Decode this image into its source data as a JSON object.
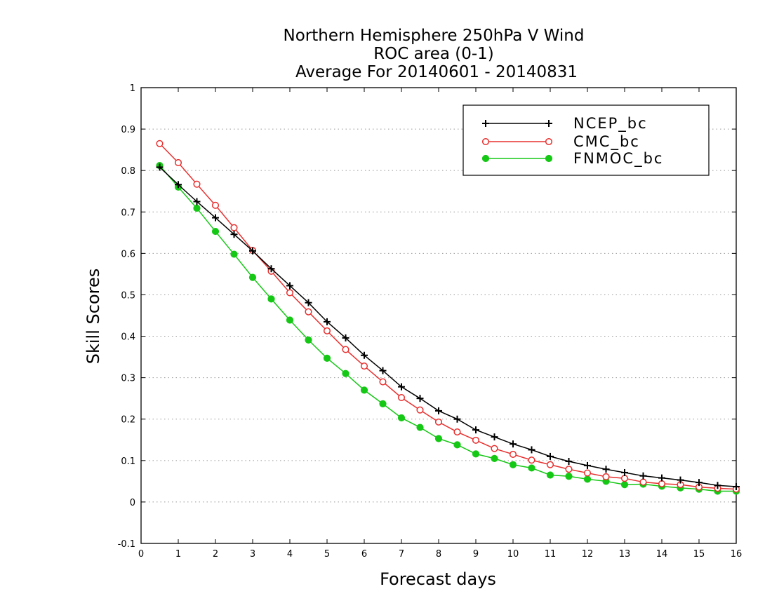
{
  "chart_data": {
    "type": "line",
    "title": "Northern Hemisphere 250hPa V Wind",
    "subtitle_lines": [
      "ROC area (0-1)",
      "Average For 20140601 - 20140831"
    ],
    "xlabel": "Forecast days",
    "ylabel": "Skill Scores",
    "xlim": [
      0,
      16
    ],
    "ylim": [
      -0.1,
      1
    ],
    "x_ticks": [
      0,
      1,
      2,
      3,
      4,
      5,
      6,
      7,
      8,
      9,
      10,
      11,
      12,
      13,
      14,
      15,
      16
    ],
    "y_ticks": [
      -0.1,
      0,
      0.1,
      0.2,
      0.3,
      0.4,
      0.5,
      0.6,
      0.7,
      0.8,
      0.9,
      1
    ],
    "y_tick_labels": [
      "-0.1",
      "0",
      "0.1",
      "0.2",
      "0.3",
      "0.4",
      "0.5",
      "0.6",
      "0.7",
      "0.8",
      "0.9",
      "1"
    ],
    "grid": "horizontal-dotted",
    "legend_position": "top-right",
    "x": [
      0.5,
      1,
      1.5,
      2,
      2.5,
      3,
      3.5,
      4,
      4.5,
      5,
      5.5,
      6,
      6.5,
      7,
      7.5,
      8,
      8.5,
      9,
      9.5,
      10,
      10.5,
      11,
      11.5,
      12,
      12.5,
      13,
      13.5,
      14,
      14.5,
      15,
      15.5,
      16
    ],
    "series": [
      {
        "name": "NCEP_bc",
        "color": "#000000",
        "marker": "plus",
        "values": [
          0.808,
          0.766,
          0.725,
          0.686,
          0.646,
          0.606,
          0.563,
          0.522,
          0.481,
          0.435,
          0.396,
          0.354,
          0.317,
          0.278,
          0.25,
          0.22,
          0.2,
          0.174,
          0.157,
          0.14,
          0.126,
          0.11,
          0.098,
          0.088,
          0.079,
          0.071,
          0.063,
          0.058,
          0.053,
          0.047,
          0.04,
          0.037
        ]
      },
      {
        "name": "CMC_bc",
        "color": "#e8302f",
        "marker": "open-circle",
        "values": [
          0.865,
          0.819,
          0.767,
          0.716,
          0.662,
          0.607,
          0.557,
          0.505,
          0.459,
          0.413,
          0.368,
          0.328,
          0.29,
          0.252,
          0.222,
          0.193,
          0.169,
          0.149,
          0.129,
          0.115,
          0.101,
          0.09,
          0.079,
          0.07,
          0.061,
          0.057,
          0.048,
          0.044,
          0.042,
          0.036,
          0.033,
          0.031
        ]
      },
      {
        "name": "FNMOC_bc",
        "color": "#16c816",
        "marker": "filled-circle",
        "values": [
          0.812,
          0.76,
          0.709,
          0.653,
          0.598,
          0.542,
          0.49,
          0.439,
          0.391,
          0.347,
          0.31,
          0.27,
          0.237,
          0.203,
          0.18,
          0.153,
          0.138,
          0.116,
          0.105,
          0.09,
          0.082,
          0.065,
          0.062,
          0.055,
          0.05,
          0.042,
          0.043,
          0.038,
          0.034,
          0.031,
          0.026,
          0.026
        ]
      }
    ]
  }
}
